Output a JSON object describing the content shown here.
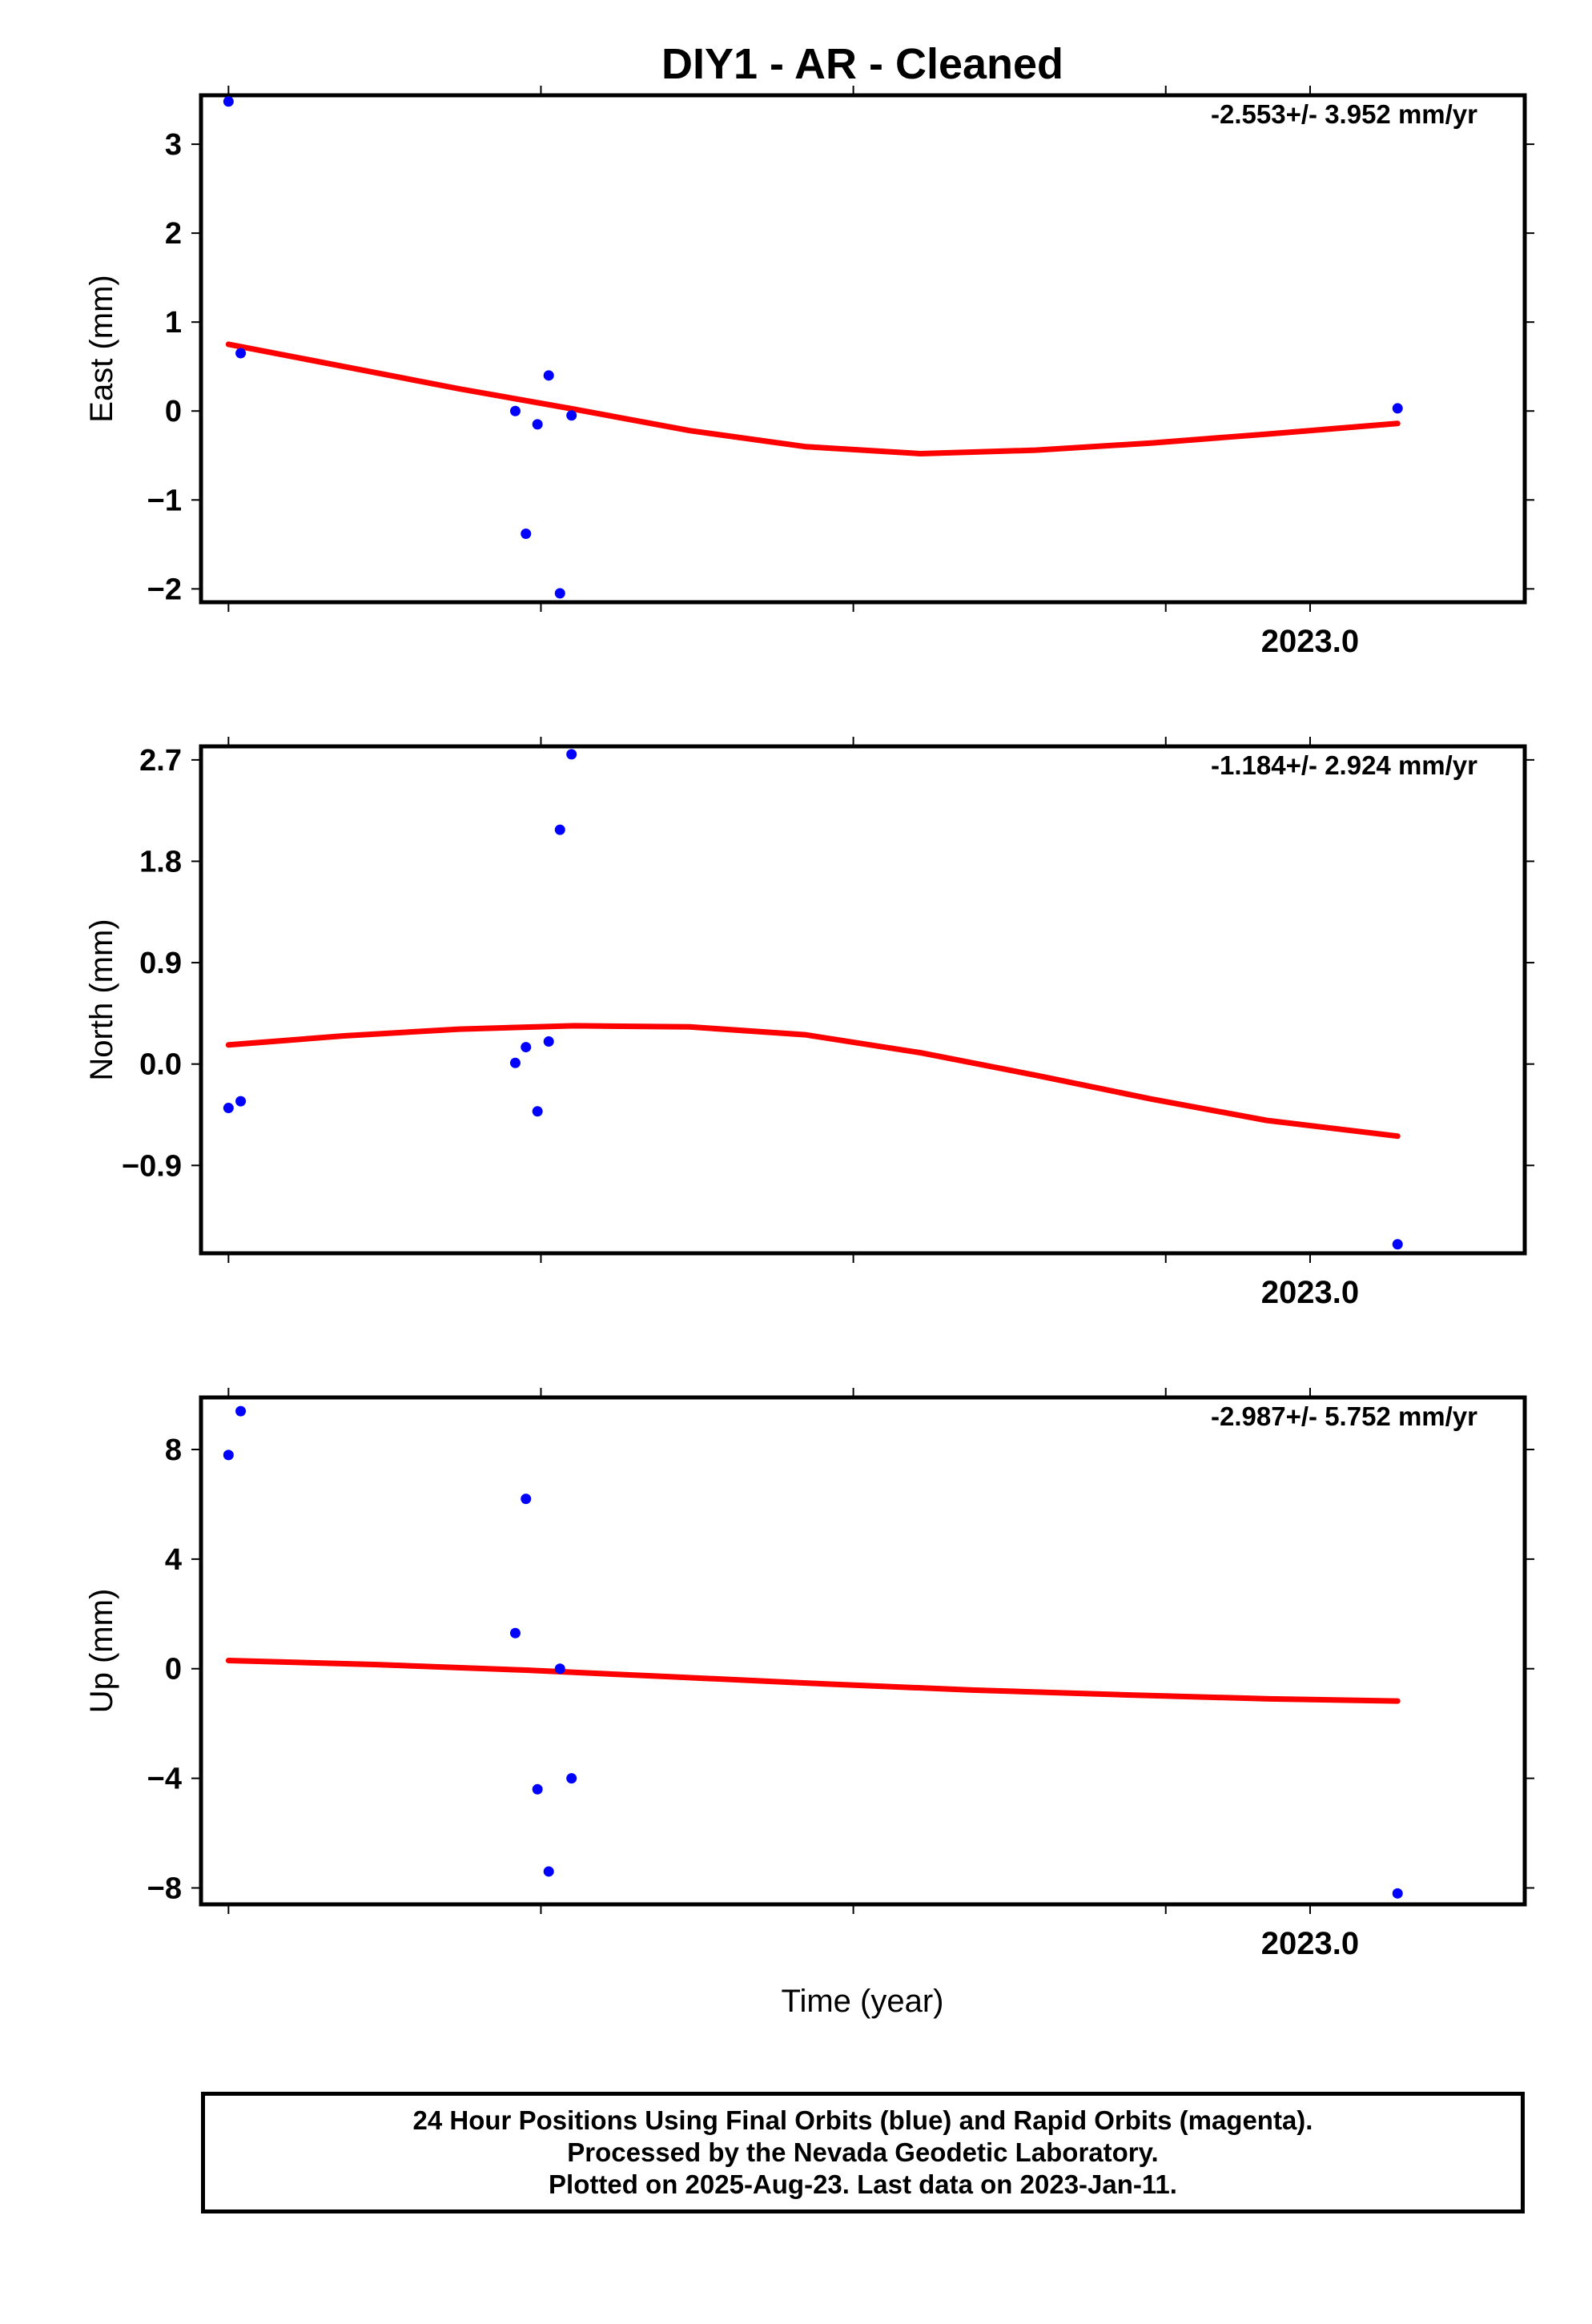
{
  "title": "DIY1  - AR - Cleaned",
  "xlabel": "Time (year)",
  "caption": {
    "line1": "24 Hour Positions Using Final Orbits (blue) and Rapid Orbits (magenta).",
    "line2": "Processed by the Nevada Geodetic Laboratory.",
    "line3": "Plotted on 2025-Aug-23. Last data on 2023-Jan-11."
  },
  "colors": {
    "points": "#0000ff",
    "fit": "#ff0000",
    "frame": "#000000"
  },
  "chart_data": [
    {
      "type": "scatter",
      "panel": "east",
      "ylabel": "East (mm)",
      "velocity_label": "-2.553+/- 3.952 mm/yr",
      "x_tick_labels": [
        {
          "x": 2023.0,
          "label": "2023.0"
        }
      ],
      "xlim": [
        2022.645,
        2023.0687
      ],
      "ylim": [
        -2.15,
        3.55
      ],
      "y_ticks": [
        3,
        2,
        1,
        0,
        -1,
        -2
      ],
      "y_tick_labels": [
        "3",
        "2",
        "1",
        "0",
        "−1",
        "−2"
      ],
      "series": [
        {
          "role": "points",
          "x": [
            2022.6538,
            2022.6577,
            2022.7456,
            2022.749,
            2022.7527,
            2022.7563,
            2022.7599,
            2022.7636,
            2023.028
          ],
          "y": [
            3.48,
            0.65,
            0.0,
            -1.38,
            -0.15,
            0.4,
            -2.05,
            -0.05,
            0.03
          ]
        },
        {
          "role": "fit",
          "x": [
            2022.6538,
            2022.6907,
            2022.7276,
            2022.7645,
            2022.8014,
            2022.8384,
            2022.8753,
            2022.9122,
            2022.9491,
            2022.986,
            2023.028
          ],
          "y": [
            0.75,
            0.5,
            0.25,
            0.02,
            -0.22,
            -0.4,
            -0.48,
            -0.44,
            -0.36,
            -0.26,
            -0.14
          ]
        }
      ]
    },
    {
      "type": "scatter",
      "panel": "north",
      "ylabel": "North (mm)",
      "velocity_label": "-1.184+/- 2.924 mm/yr",
      "x_tick_labels": [
        {
          "x": 2023.0,
          "label": "2023.0"
        }
      ],
      "xlim": [
        2022.645,
        2023.0687
      ],
      "ylim": [
        -1.68,
        2.82
      ],
      "y_ticks": [
        2.7,
        1.8,
        0.9,
        0.0,
        -0.9
      ],
      "y_tick_labels": [
        "2.7",
        "1.8",
        "0.9",
        "0.0",
        "−0.9"
      ],
      "series": [
        {
          "role": "points",
          "x": [
            2022.6538,
            2022.6577,
            2022.7456,
            2022.749,
            2022.7527,
            2022.7563,
            2022.7599,
            2022.7636,
            2023.028
          ],
          "y": [
            -0.39,
            -0.33,
            0.01,
            0.15,
            -0.42,
            0.2,
            2.08,
            2.75,
            -1.6
          ]
        },
        {
          "role": "fit",
          "x": [
            2022.6538,
            2022.6907,
            2022.7276,
            2022.7645,
            2022.8014,
            2022.8384,
            2022.8753,
            2022.9122,
            2022.9491,
            2022.986,
            2023.028
          ],
          "y": [
            0.17,
            0.25,
            0.31,
            0.34,
            0.33,
            0.26,
            0.1,
            -0.1,
            -0.31,
            -0.5,
            -0.64
          ]
        }
      ]
    },
    {
      "type": "scatter",
      "panel": "up",
      "ylabel": "Up (mm)",
      "velocity_label": "-2.987+/- 5.752 mm/yr",
      "x_tick_labels": [
        {
          "x": 2023.0,
          "label": "2023.0"
        }
      ],
      "xlim": [
        2022.645,
        2023.0687
      ],
      "ylim": [
        -8.6,
        9.9
      ],
      "y_ticks": [
        8,
        4,
        0,
        -4,
        -8
      ],
      "y_tick_labels": [
        "8",
        "4",
        "0",
        "−4",
        "−8"
      ],
      "series": [
        {
          "role": "points",
          "x": [
            2022.6538,
            2022.6577,
            2022.7456,
            2022.749,
            2022.7527,
            2022.7563,
            2022.7599,
            2022.7636,
            2023.028
          ],
          "y": [
            7.8,
            9.4,
            1.3,
            6.2,
            -4.4,
            -7.4,
            0.0,
            -4.0,
            -8.2
          ]
        },
        {
          "role": "fit",
          "x": [
            2022.6538,
            2022.7014,
            2022.749,
            2022.7966,
            2022.8442,
            2022.8918,
            2022.9394,
            2022.987,
            2023.028
          ],
          "y": [
            0.3,
            0.15,
            -0.05,
            -0.3,
            -0.55,
            -0.78,
            -0.95,
            -1.1,
            -1.18
          ]
        }
      ]
    }
  ]
}
